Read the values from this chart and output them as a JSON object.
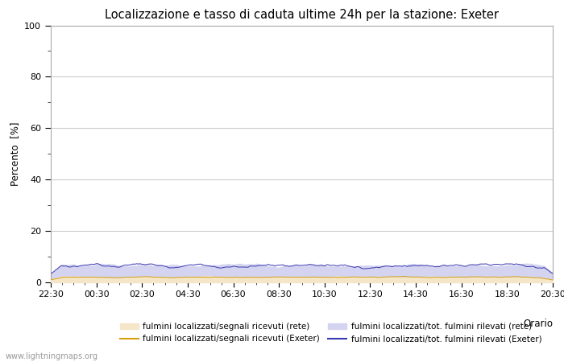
{
  "title": "Localizzazione e tasso di caduta ultime 24h per la stazione: Exeter",
  "ylabel": "Percento  [%]",
  "xlabel": "Orario",
  "watermark": "www.lightningmaps.org",
  "ylim": [
    0,
    100
  ],
  "yticks": [
    0,
    20,
    40,
    60,
    80,
    100
  ],
  "xtick_labels": [
    "22:30",
    "00:30",
    "02:30",
    "04:30",
    "06:30",
    "08:30",
    "10:30",
    "12:30",
    "14:30",
    "16:30",
    "18:30",
    "20:30"
  ],
  "n_points": 288,
  "fill_rete_color": "#f5e6c8",
  "fill_exeter_color": "#d4d4f0",
  "line_rete_color": "#d4a010",
  "line_exeter_color": "#3838b0",
  "background_color": "#ffffff",
  "grid_color": "#cccccc",
  "title_fontsize": 10.5,
  "axis_fontsize": 8.5,
  "tick_fontsize": 8,
  "legend_fontsize": 7.5,
  "legend_labels": [
    "fulmini localizzati/segnali ricevuti (rete)",
    "fulmini localizzati/segnali ricevuti (Exeter)",
    "fulmini localizzati/tot. fulmini rilevati (rete)",
    "fulmini localizzati/tot. fulmini rilevati (Exeter)"
  ]
}
